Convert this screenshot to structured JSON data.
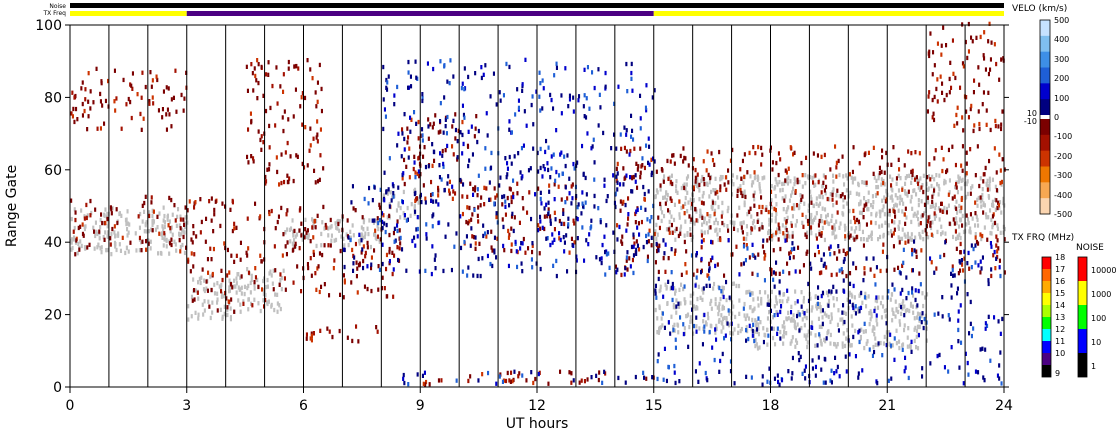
{
  "header": {
    "noise_label": "Noise",
    "txfreq_label": "TX Freq"
  },
  "chart_data": {
    "type": "scatter",
    "x": {
      "label": "UT hours",
      "range": [
        0,
        24
      ],
      "ticks": [
        0,
        3,
        6,
        9,
        12,
        15,
        18,
        21,
        24
      ]
    },
    "y": {
      "label": "Range Gate",
      "range": [
        0,
        100
      ],
      "ticks": [
        0,
        20,
        40,
        60,
        80,
        100
      ]
    },
    "grid": "vertical lines every hour",
    "tx_freq_bar": [
      {
        "from": 0,
        "to": 3,
        "color": "#ffff00"
      },
      {
        "from": 3,
        "to": 15,
        "color": "#4b0082"
      },
      {
        "from": 15,
        "to": 24,
        "color": "#ffff00"
      }
    ],
    "velocity_scale": {
      "title": "VELO (km/s)",
      "ticks": [
        "500",
        "400",
        "300",
        "200",
        "100",
        "0",
        "10",
        "-10",
        "-100",
        "-200",
        "-300",
        "-400",
        "-500"
      ],
      "positive_colors": [
        "#000080",
        "#0000cd",
        "#1e5fd6",
        "#3d8fe6",
        "#7fbfef",
        "#c6e2ff"
      ],
      "negative_colors": [
        "#7b0000",
        "#a31000",
        "#cc3300",
        "#ee7700",
        "#f7a852",
        "#fbd5b0"
      ],
      "ground_scatter_color": "#c0c0c0"
    },
    "tx_freq_scale": {
      "title": "TX FRQ (MHz)",
      "ticks": [
        "18",
        "17",
        "16",
        "15",
        "14",
        "13",
        "12",
        "11",
        "10",
        "9"
      ],
      "colors": [
        "#ff0000",
        "#ff6600",
        "#ffaa00",
        "#ffff00",
        "#aaff00",
        "#00ff00",
        "#00ffff",
        "#0000ff",
        "#4b0082",
        "#000000"
      ]
    },
    "noise_scale": {
      "title": "NOISE",
      "ticks": [
        "10000",
        "1000",
        "100",
        "10",
        "1"
      ],
      "colors": [
        "#ff0000",
        "#ffff00",
        "#00ff00",
        "#0000ff",
        "#000000"
      ]
    },
    "ground_scatter": [
      {
        "t0": 0.0,
        "t1": 3.0,
        "g0": 36,
        "g1": 49
      },
      {
        "t0": 3.0,
        "t1": 4.2,
        "g0": 18,
        "g1": 30
      },
      {
        "t0": 4.2,
        "t1": 5.5,
        "g0": 20,
        "g1": 32
      },
      {
        "t0": 5.5,
        "t1": 8.0,
        "g0": 38,
        "g1": 46
      },
      {
        "t0": 8.0,
        "t1": 9.0,
        "g0": 46,
        "g1": 54
      },
      {
        "t0": 15.0,
        "t1": 24.0,
        "g0": 40,
        "g1": 58
      },
      {
        "t0": 15.0,
        "t1": 17.5,
        "g0": 14,
        "g1": 28
      },
      {
        "t0": 17.5,
        "t1": 22.0,
        "g0": 10,
        "g1": 26
      }
    ],
    "negative_velocity": [
      {
        "t0": 0.0,
        "t1": 3.0,
        "g0": 70,
        "g1": 88
      },
      {
        "t0": 0.0,
        "t1": 3.0,
        "g0": 36,
        "g1": 52
      },
      {
        "t0": 3.0,
        "t1": 5.0,
        "g0": 20,
        "g1": 52
      },
      {
        "t0": 4.5,
        "t1": 6.5,
        "g0": 55,
        "g1": 90
      },
      {
        "t0": 5.0,
        "t1": 8.5,
        "g0": 24,
        "g1": 50
      },
      {
        "t0": 6.0,
        "t1": 8.0,
        "g0": 12,
        "g1": 18
      },
      {
        "t0": 8.5,
        "t1": 10.5,
        "g0": 50,
        "g1": 75
      },
      {
        "t0": 9.0,
        "t1": 15.0,
        "g0": 0,
        "g1": 4
      },
      {
        "t0": 10.0,
        "t1": 13.0,
        "g0": 36,
        "g1": 56
      },
      {
        "t0": 14.0,
        "t1": 24.0,
        "g0": 30,
        "g1": 66
      },
      {
        "t0": 22.0,
        "t1": 24.0,
        "g0": 70,
        "g1": 100
      }
    ],
    "positive_velocity": [
      {
        "t0": 8.0,
        "t1": 15.0,
        "g0": 30,
        "g1": 90
      },
      {
        "t0": 12.0,
        "t1": 15.0,
        "g0": 34,
        "g1": 62
      },
      {
        "t0": 8.5,
        "t1": 20.0,
        "g0": 0,
        "g1": 4
      },
      {
        "t0": 15.0,
        "t1": 24.0,
        "g0": 0,
        "g1": 40
      },
      {
        "t0": 7.0,
        "t1": 9.0,
        "g0": 30,
        "g1": 55
      }
    ]
  }
}
